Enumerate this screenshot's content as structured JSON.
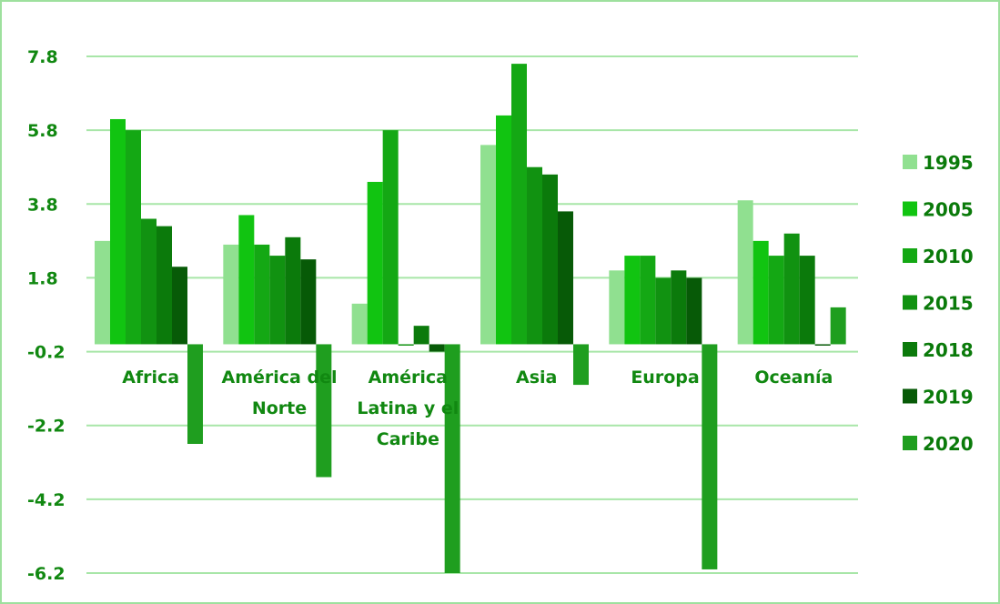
{
  "chart_data": {
    "type": "bar",
    "categories": [
      "Africa",
      "América del Norte",
      "América Latina y el Caribe",
      "Asia",
      "Europa",
      "Oceanía"
    ],
    "category_label_lines": [
      [
        "Africa"
      ],
      [
        "América del",
        "Norte"
      ],
      [
        "América",
        "Latina y el",
        "Caribe"
      ],
      [
        "Asia"
      ],
      [
        "Europa"
      ],
      [
        "Oceanía"
      ]
    ],
    "series": [
      {
        "name": "1995",
        "color": "#90e090",
        "values": [
          2.8,
          2.7,
          1.1,
          5.4,
          2.0,
          3.9
        ]
      },
      {
        "name": "2005",
        "color": "#11c411",
        "values": [
          6.1,
          3.5,
          4.4,
          6.2,
          2.4,
          2.8
        ]
      },
      {
        "name": "2010",
        "color": "#14a814",
        "values": [
          5.8,
          2.7,
          5.8,
          7.6,
          2.4,
          2.4
        ]
      },
      {
        "name": "2015",
        "color": "#119211",
        "values": [
          3.4,
          2.4,
          0.0,
          4.8,
          1.8,
          3.0
        ]
      },
      {
        "name": "2018",
        "color": "#0b7a0b",
        "values": [
          3.2,
          2.9,
          0.5,
          4.6,
          2.0,
          2.4
        ]
      },
      {
        "name": "2019",
        "color": "#075a07",
        "values": [
          2.1,
          2.3,
          -0.2,
          3.6,
          1.8,
          0.0
        ]
      },
      {
        "name": "2020",
        "color": "#1f9e1f",
        "values": [
          -2.7,
          -3.6,
          -6.2,
          -1.1,
          -6.1,
          1.0
        ]
      }
    ],
    "yticks": [
      "7.8",
      "5.8",
      "3.8",
      "1.8",
      "-0.2",
      "-2.2",
      "-4.2",
      "-6.2"
    ],
    "ylim": [
      -6.2,
      7.8
    ],
    "grid": true,
    "legend_position": "right",
    "title": "",
    "xlabel": "",
    "ylabel": ""
  },
  "colors": {
    "gridline": "#a8e6a8",
    "text": "#118811",
    "frame": "#9ee09e"
  }
}
